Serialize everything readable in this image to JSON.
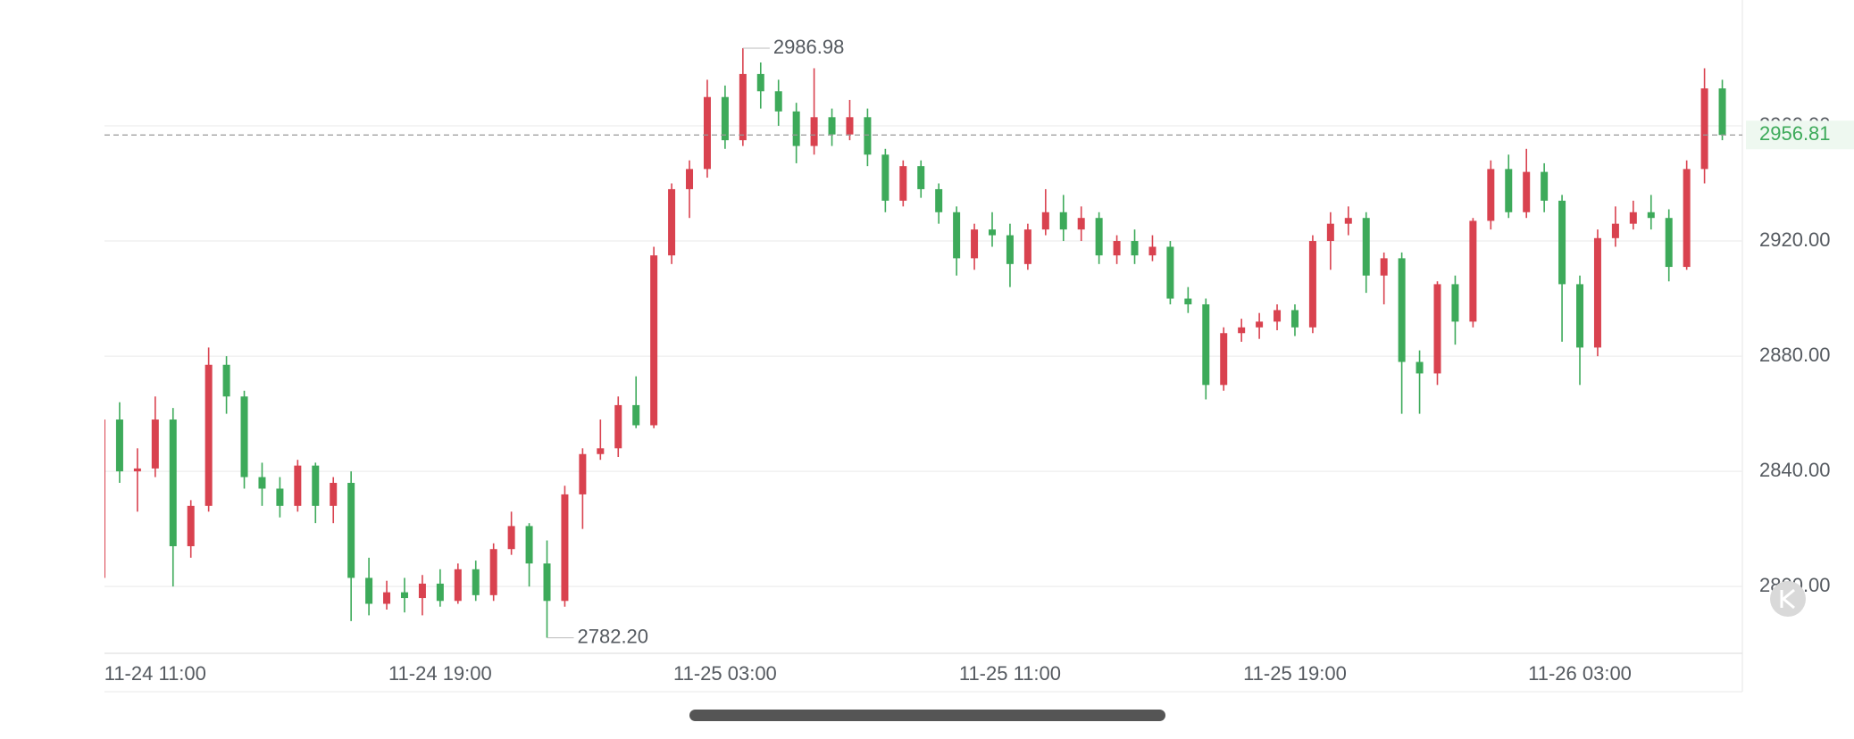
{
  "chart_data": {
    "type": "candlestick",
    "up_color": "#d9424f",
    "down_color": "#3daa5a",
    "grid": true,
    "categories": [
      null,
      null,
      null,
      "11-24 11:00",
      null,
      null,
      null,
      null,
      null,
      null,
      null,
      null,
      null,
      null,
      null,
      null,
      null,
      null,
      null,
      "11-24 19:00",
      null,
      null,
      null,
      null,
      null,
      null,
      null,
      null,
      null,
      null,
      null,
      null,
      null,
      null,
      null,
      "11-25 03:00",
      null,
      null,
      null,
      null,
      null,
      null,
      null,
      null,
      null,
      null,
      null,
      null,
      null,
      null,
      null,
      "11-25 11:00",
      null,
      null,
      null,
      null,
      null,
      null,
      null,
      null,
      null,
      null,
      null,
      null,
      null,
      null,
      null,
      "11-25 19:00",
      null,
      null,
      null,
      null,
      null,
      null,
      null,
      null,
      null,
      null,
      null,
      null,
      null,
      null,
      null,
      "11-26 03:00",
      null,
      null,
      null,
      null,
      null,
      null,
      null,
      null
    ],
    "open": [
      2803,
      2858,
      2840,
      2841,
      2858,
      2814,
      2828,
      2877,
      2866,
      2838,
      2834,
      2828,
      2842,
      2828,
      2836,
      2803,
      2794,
      2798,
      2796,
      2801,
      2795,
      2806,
      2797,
      2813,
      2821,
      2808,
      2795,
      2832,
      2846,
      2848,
      2863,
      2856,
      2915,
      2938,
      2945,
      2970,
      2955,
      2978,
      2972,
      2965,
      2953,
      2963,
      2957,
      2963,
      2950,
      2934,
      2946,
      2938,
      2930,
      2914,
      2924,
      2922,
      2912,
      2924,
      2930,
      2924,
      2928,
      2915,
      2920,
      2915,
      2918,
      2900,
      2898,
      2870,
      2888,
      2890,
      2892,
      2896,
      2890,
      2920,
      2926,
      2928,
      2908,
      2914,
      2878,
      2874,
      2905,
      2892,
      2927,
      2945,
      2930,
      2944,
      2934,
      2905,
      2883,
      2921,
      2926,
      2930,
      2928,
      2911,
      2945,
      2973
    ],
    "high": [
      2860,
      2864,
      2848,
      2866,
      2862,
      2830,
      2883,
      2880,
      2868,
      2843,
      2838,
      2844,
      2843,
      2838,
      2840,
      2810,
      2802,
      2803,
      2804,
      2806,
      2808,
      2809,
      2815,
      2826,
      2822,
      2816,
      2835,
      2848,
      2858,
      2866,
      2873,
      2918,
      2940,
      2948,
      2976,
      2974,
      2986.98,
      2982,
      2976,
      2968,
      2980,
      2966,
      2969,
      2966,
      2952,
      2948,
      2948,
      2940,
      2932,
      2926,
      2930,
      2926,
      2926,
      2938,
      2936,
      2932,
      2930,
      2922,
      2924,
      2922,
      2920,
      2904,
      2900,
      2890,
      2893,
      2895,
      2898,
      2898,
      2922,
      2930,
      2932,
      2930,
      2916,
      2916,
      2882,
      2906,
      2908,
      2928,
      2948,
      2950,
      2952,
      2947,
      2936,
      2908,
      2924,
      2932,
      2934,
      2936,
      2931,
      2948,
      2980,
      2976
    ],
    "low": [
      2800,
      2836,
      2826,
      2838,
      2800,
      2810,
      2826,
      2860,
      2834,
      2828,
      2824,
      2826,
      2822,
      2822,
      2788,
      2790,
      2792,
      2791,
      2790,
      2793,
      2794,
      2795,
      2795,
      2811,
      2800,
      2782.2,
      2793,
      2820,
      2844,
      2845,
      2855,
      2855,
      2912,
      2928,
      2942,
      2952,
      2953,
      2966,
      2960,
      2947,
      2950,
      2953,
      2955,
      2946,
      2930,
      2932,
      2935,
      2926,
      2908,
      2910,
      2918,
      2904,
      2910,
      2922,
      2920,
      2920,
      2912,
      2912,
      2912,
      2913,
      2898,
      2895,
      2865,
      2868,
      2885,
      2886,
      2889,
      2887,
      2888,
      2910,
      2922,
      2902,
      2898,
      2860,
      2860,
      2870,
      2884,
      2890,
      2924,
      2928,
      2928,
      2930,
      2885,
      2870,
      2880,
      2918,
      2924,
      2924,
      2906,
      2910,
      2940,
      2955
    ],
    "close": [
      2858,
      2840,
      2841,
      2858,
      2814,
      2828,
      2877,
      2866,
      2838,
      2834,
      2828,
      2842,
      2828,
      2836,
      2803,
      2794,
      2798,
      2796,
      2801,
      2795,
      2806,
      2797,
      2813,
      2821,
      2808,
      2795,
      2832,
      2846,
      2848,
      2863,
      2856,
      2915,
      2938,
      2945,
      2970,
      2955,
      2978,
      2972,
      2965,
      2953,
      2963,
      2957,
      2963,
      2950,
      2934,
      2946,
      2938,
      2930,
      2914,
      2924,
      2922,
      2912,
      2924,
      2930,
      2924,
      2928,
      2915,
      2920,
      2915,
      2918,
      2900,
      2898,
      2870,
      2888,
      2890,
      2892,
      2896,
      2890,
      2920,
      2926,
      2928,
      2908,
      2914,
      2878,
      2874,
      2905,
      2892,
      2927,
      2945,
      2930,
      2944,
      2934,
      2905,
      2883,
      2921,
      2926,
      2930,
      2928,
      2911,
      2945,
      2973,
      2956.81
    ],
    "extreme_labels": {
      "high": "2986.98",
      "low": "2782.20"
    },
    "ylim": [
      2776.8,
      3003.7
    ],
    "yticks": [
      {
        "value": 2800,
        "label": "2800.00"
      },
      {
        "value": 2840,
        "label": "2840.00"
      },
      {
        "value": 2880,
        "label": "2880.00"
      },
      {
        "value": 2920,
        "label": "2920.00"
      },
      {
        "value": 2960,
        "label": "2960.00"
      }
    ]
  }
}
